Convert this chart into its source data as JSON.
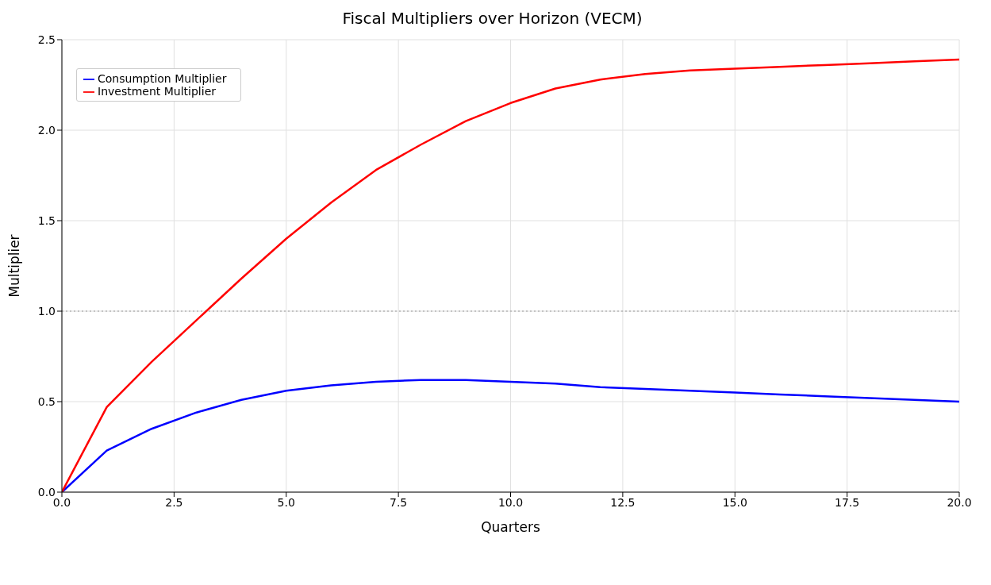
{
  "chart_data": {
    "type": "line",
    "title": "Fiscal Multipliers over Horizon (VECM)",
    "xlabel": "Quarters",
    "ylabel": "Multiplier",
    "x": [
      0,
      1,
      2,
      3,
      4,
      5,
      6,
      7,
      8,
      9,
      10,
      11,
      12,
      13,
      14,
      15,
      16,
      17,
      18,
      19,
      20
    ],
    "series": [
      {
        "name": "Consumption Multiplier",
        "color": "#0000ff",
        "values": [
          0,
          0.23,
          0.35,
          0.44,
          0.51,
          0.56,
          0.59,
          0.61,
          0.62,
          0.62,
          0.61,
          0.6,
          0.58,
          0.57,
          0.56,
          0.55,
          0.54,
          0.53,
          0.52,
          0.51,
          0.5
        ]
      },
      {
        "name": "Investment Multiplier",
        "color": "#ff0000",
        "values": [
          0,
          0.47,
          0.72,
          0.95,
          1.18,
          1.4,
          1.6,
          1.78,
          1.92,
          2.05,
          2.15,
          2.23,
          2.28,
          2.31,
          2.33,
          2.34,
          2.35,
          2.36,
          2.37,
          2.38,
          2.39
        ]
      }
    ],
    "xlim": [
      0,
      20
    ],
    "xticks": [
      {
        "value": 0,
        "label": "0.0"
      },
      {
        "value": 2.5,
        "label": "2.5"
      },
      {
        "value": 5,
        "label": "5.0"
      },
      {
        "value": 7.5,
        "label": "7.5"
      },
      {
        "value": 10,
        "label": "10.0"
      },
      {
        "value": 12.5,
        "label": "12.5"
      },
      {
        "value": 15,
        "label": "15.0"
      },
      {
        "value": 17.5,
        "label": "17.5"
      },
      {
        "value": 20,
        "label": "20.0"
      }
    ],
    "ylim": [
      0,
      2.5
    ],
    "yticks": [
      {
        "value": 0,
        "label": "0.0"
      },
      {
        "value": 0.5,
        "label": "0.5"
      },
      {
        "value": 1,
        "label": "1.0"
      },
      {
        "value": 1.5,
        "label": "1.5"
      },
      {
        "value": 2,
        "label": "2.0"
      },
      {
        "value": 2.5,
        "label": "2.5"
      }
    ],
    "ref_lines": [
      {
        "axis": "y",
        "value": 1,
        "color": "#999999",
        "line_style": "dotted"
      }
    ],
    "grid": true,
    "legend": "top left",
    "marker": "none",
    "line_style": "solid"
  }
}
